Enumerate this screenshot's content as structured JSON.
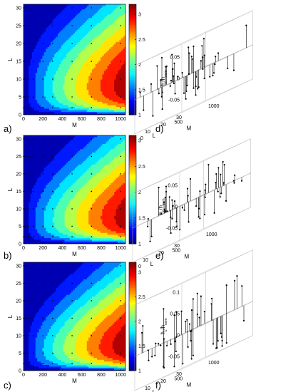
{
  "panels": [
    {
      "id": "a",
      "label": "a)"
    },
    {
      "id": "b",
      "label": "b)"
    },
    {
      "id": "c",
      "label": "c)"
    },
    {
      "id": "d",
      "label": "d)"
    },
    {
      "id": "e",
      "label": "e)"
    },
    {
      "id": "f",
      "label": "f)"
    }
  ],
  "colorbar_ticks": [
    "3",
    "2.5",
    "2",
    "1.5",
    "1"
  ],
  "chart_data": [
    {
      "panel": "a)",
      "type": "heatmap",
      "style": "filled contour map with sample points",
      "xlabel": "M",
      "ylabel": "L",
      "xlim": [
        0,
        1050
      ],
      "ylim": [
        0,
        31
      ],
      "x_ticks": [
        0,
        200,
        400,
        600,
        800,
        1000
      ],
      "y_ticks": [
        0,
        5,
        10,
        15,
        20,
        25,
        30
      ],
      "colorbar": {
        "range": [
          1,
          3.2
        ],
        "ticks": [
          1,
          1.5,
          2,
          2.5,
          3
        ],
        "colormap": "jet"
      },
      "peak": {
        "M": 1000,
        "L": 7,
        "value": 3.1
      },
      "sample_points": {
        "M": [
          0,
          20,
          50,
          100,
          200,
          300,
          500,
          700,
          1000
        ],
        "L": [
          2,
          5,
          10,
          15,
          20,
          25,
          30
        ]
      }
    },
    {
      "panel": "b)",
      "type": "heatmap",
      "style": "filled contour map with sample points",
      "xlabel": "M",
      "ylabel": "L",
      "xlim": [
        0,
        1050
      ],
      "ylim": [
        0,
        31
      ],
      "x_ticks": [
        0,
        200,
        400,
        600,
        800,
        1000
      ],
      "y_ticks": [
        0,
        5,
        10,
        15,
        20,
        25,
        30
      ],
      "colorbar": {
        "range": [
          1,
          3.1
        ],
        "ticks": [
          1,
          1.5,
          2,
          2.5,
          3
        ],
        "colormap": "jet"
      },
      "peak": {
        "M": 1000,
        "L": 6,
        "value": 3.0
      },
      "sample_points": {
        "M": [
          0,
          20,
          50,
          100,
          200,
          300,
          500,
          700,
          1000
        ],
        "L": [
          2,
          5,
          10,
          15,
          20,
          25,
          30
        ]
      }
    },
    {
      "panel": "c)",
      "type": "heatmap",
      "style": "filled contour map with sample points",
      "xlabel": "M",
      "ylabel": "L",
      "xlim": [
        0,
        1050
      ],
      "ylim": [
        0,
        31
      ],
      "x_ticks": [
        0,
        200,
        400,
        600,
        800,
        1000
      ],
      "y_ticks": [
        0,
        5,
        10,
        15,
        20,
        25,
        30
      ],
      "colorbar": {
        "range": [
          1,
          3.2
        ],
        "ticks": [
          1,
          1.5,
          2,
          2.5,
          3
        ],
        "colormap": "jet"
      },
      "peak": {
        "M": 1000,
        "L": 5,
        "value": 3.15
      },
      "sample_points": {
        "M": [
          0,
          20,
          50,
          100,
          200,
          300,
          500,
          700,
          1000
        ],
        "L": [
          2,
          5,
          10,
          15,
          20,
          25,
          30
        ]
      }
    },
    {
      "panel": "d)",
      "type": "scatter",
      "style": "3D stem plot of residuals on a grey plane",
      "xlabel": "L",
      "ylabel": "M",
      "zlabel": "h_c/h_exm",
      "L_ticks": [
        10,
        20,
        30
      ],
      "M_ticks": [
        0,
        500,
        1000
      ],
      "z_ticks": [
        -0.05,
        0,
        0.05
      ],
      "z_range": [
        -0.08,
        0.08
      ]
    },
    {
      "panel": "e)",
      "type": "scatter",
      "style": "3D stem plot of residuals on a grey plane",
      "xlabel": "L",
      "ylabel": "M",
      "zlabel": "h_c/h_exm",
      "L_ticks": [
        10,
        20,
        30
      ],
      "M_ticks": [
        0,
        500,
        1000
      ],
      "z_ticks": [
        -0.05,
        0,
        0.05
      ],
      "z_range": [
        -0.08,
        0.08
      ]
    },
    {
      "panel": "f)",
      "type": "scatter",
      "style": "3D stem plot of residuals on a grey plane",
      "xlabel": "L",
      "ylabel": "M",
      "zlabel": "h_c/h_exm",
      "L_ticks": [
        10,
        20,
        30
      ],
      "M_ticks": [
        0,
        500,
        1000
      ],
      "z_ticks": [
        -0.05,
        0,
        0.05,
        0.1
      ],
      "z_range": [
        -0.08,
        0.12
      ]
    }
  ]
}
